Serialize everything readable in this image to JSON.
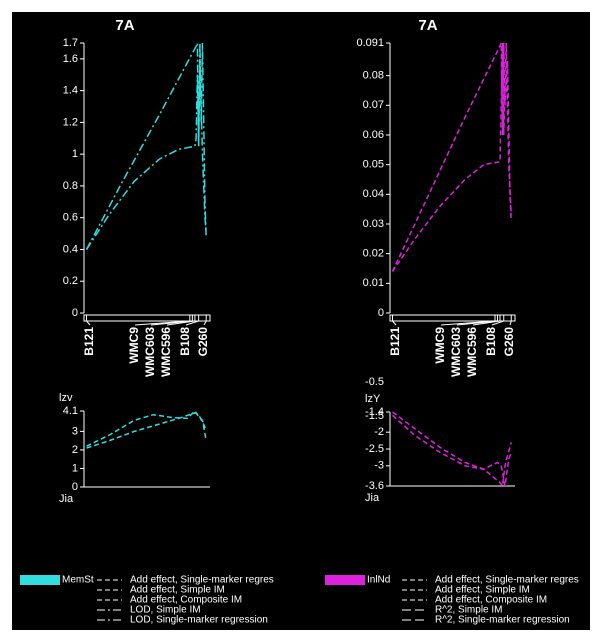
{
  "chart_data": [
    {
      "type": "line",
      "title": "7A",
      "xlim": [
        0,
        100
      ],
      "ylim": [
        0,
        1.7
      ],
      "yticks": [
        0,
        0.2,
        0.4,
        0.6,
        0.8,
        1,
        1.2,
        1.4,
        1.6,
        1.7
      ],
      "markers": [
        {
          "name": "B121",
          "x": 2
        },
        {
          "name": "WMC9",
          "x": 84
        },
        {
          "name": "WMC603",
          "x": 86
        },
        {
          "name": "WMC596",
          "x": 88
        },
        {
          "name": "B108",
          "x": 91
        },
        {
          "name": "G260",
          "x": 97
        }
      ],
      "series": [
        {
          "color": "#33dddd",
          "dash": "dashdot",
          "x": [
            2,
            30,
            60,
            89,
            90,
            91,
            92,
            93,
            94,
            96,
            97
          ],
          "values": [
            0.4,
            0.82,
            1.25,
            1.68,
            1.7,
            1.05,
            1.7,
            1.2,
            1.7,
            0.7,
            0.47
          ]
        },
        {
          "color": "#33dddd",
          "dash": "dashdot",
          "x": [
            2,
            20,
            40,
            60,
            75,
            88,
            89,
            90,
            91,
            92,
            94,
            96,
            97
          ],
          "values": [
            0.4,
            0.62,
            0.83,
            0.97,
            1.03,
            1.05,
            1.1,
            1.5,
            1.05,
            1.6,
            1.0,
            0.6,
            0.5
          ]
        }
      ]
    },
    {
      "type": "line",
      "title": "7A",
      "xlim": [
        0,
        100
      ],
      "ylim": [
        0,
        0.091
      ],
      "yticks": [
        0,
        0.01,
        0.02,
        0.03,
        0.04,
        0.05,
        0.06,
        0.07,
        0.08,
        0.091
      ],
      "markers": [
        {
          "name": "B121",
          "x": 2
        },
        {
          "name": "WMC9",
          "x": 84
        },
        {
          "name": "WMC603",
          "x": 86
        },
        {
          "name": "WMC596",
          "x": 88
        },
        {
          "name": "B108",
          "x": 91
        },
        {
          "name": "G260",
          "x": 97
        }
      ],
      "series": [
        {
          "color": "#dd22dd",
          "dash": "dash",
          "x": [
            2,
            30,
            60,
            88,
            89,
            90,
            91,
            92,
            94,
            96,
            97
          ],
          "values": [
            0.014,
            0.039,
            0.066,
            0.09,
            0.091,
            0.06,
            0.091,
            0.07,
            0.085,
            0.04,
            0.031
          ]
        },
        {
          "color": "#dd22dd",
          "dash": "dash",
          "x": [
            2,
            20,
            40,
            60,
            75,
            88,
            89,
            90,
            91,
            93,
            95,
            97
          ],
          "values": [
            0.014,
            0.025,
            0.036,
            0.045,
            0.05,
            0.051,
            0.07,
            0.091,
            0.06,
            0.091,
            0.05,
            0.033
          ]
        }
      ]
    },
    {
      "type": "line",
      "ylabel": "lzv",
      "xlabel": "Jia",
      "xlim": [
        0,
        100
      ],
      "ylim": [
        0,
        4.1
      ],
      "yticks": [
        0,
        1,
        2,
        3,
        4.1
      ],
      "series": [
        {
          "color": "#33dddd",
          "dash": "dash",
          "x": [
            2,
            20,
            40,
            55,
            70,
            82,
            88,
            91,
            94,
            97
          ],
          "values": [
            2.2,
            2.8,
            3.6,
            3.9,
            3.75,
            3.7,
            4.1,
            3.8,
            3.6,
            2.5
          ]
        },
        {
          "color": "#33dddd",
          "dash": "dash",
          "x": [
            2,
            20,
            40,
            60,
            75,
            88,
            91,
            94,
            97
          ],
          "values": [
            2.1,
            2.5,
            3.0,
            3.4,
            3.7,
            4.0,
            3.9,
            3.5,
            3.1
          ]
        }
      ]
    },
    {
      "type": "line",
      "ylabel": "lzY",
      "xlabel": "Jia",
      "xlim": [
        0,
        100
      ],
      "ylim": [
        -3.6,
        -1.4
      ],
      "yticks": [
        -3.6,
        -3,
        -2.5,
        -2,
        -1.4
      ],
      "stray_labels": [
        "-0.5",
        "-1.5"
      ],
      "series": [
        {
          "color": "#dd22dd",
          "dash": "dash",
          "x": [
            2,
            20,
            40,
            60,
            75,
            88,
            90,
            92,
            94,
            97
          ],
          "values": [
            -1.4,
            -1.9,
            -2.45,
            -2.9,
            -3.1,
            -3.5,
            -3.6,
            -3.0,
            -2.7,
            -2.3
          ]
        },
        {
          "color": "#dd22dd",
          "dash": "dash",
          "x": [
            2,
            20,
            40,
            60,
            75,
            86,
            89,
            92,
            95,
            97
          ],
          "values": [
            -1.5,
            -2.1,
            -2.6,
            -3.0,
            -3.1,
            -2.9,
            -3.0,
            -3.6,
            -2.8,
            -2.6
          ]
        }
      ]
    }
  ],
  "legend": [
    {
      "trait": "MemSt",
      "color": "#33dddd",
      "entries": [
        {
          "label": "Add effect, Single-marker regres",
          "dash": "dash"
        },
        {
          "label": "Add effect, Simple IM",
          "dash": "dash"
        },
        {
          "label": "Add effect, Composite IM",
          "dash": "dash"
        },
        {
          "label": "LOD, Simple IM",
          "dash": "dashdot"
        },
        {
          "label": "LOD, Single-marker regression",
          "dash": "dashdot"
        }
      ]
    },
    {
      "trait": "InlNd",
      "color": "#dd22dd",
      "entries": [
        {
          "label": "Add effect, Single-marker regres",
          "dash": "dash"
        },
        {
          "label": "Add effect, Simple IM",
          "dash": "dash"
        },
        {
          "label": "Add effect, Composite IM",
          "dash": "dash"
        },
        {
          "label": "R^2, Simple IM",
          "dash": "longdash"
        },
        {
          "label": "R^2, Single-marker regression",
          "dash": "longdash"
        }
      ]
    }
  ]
}
